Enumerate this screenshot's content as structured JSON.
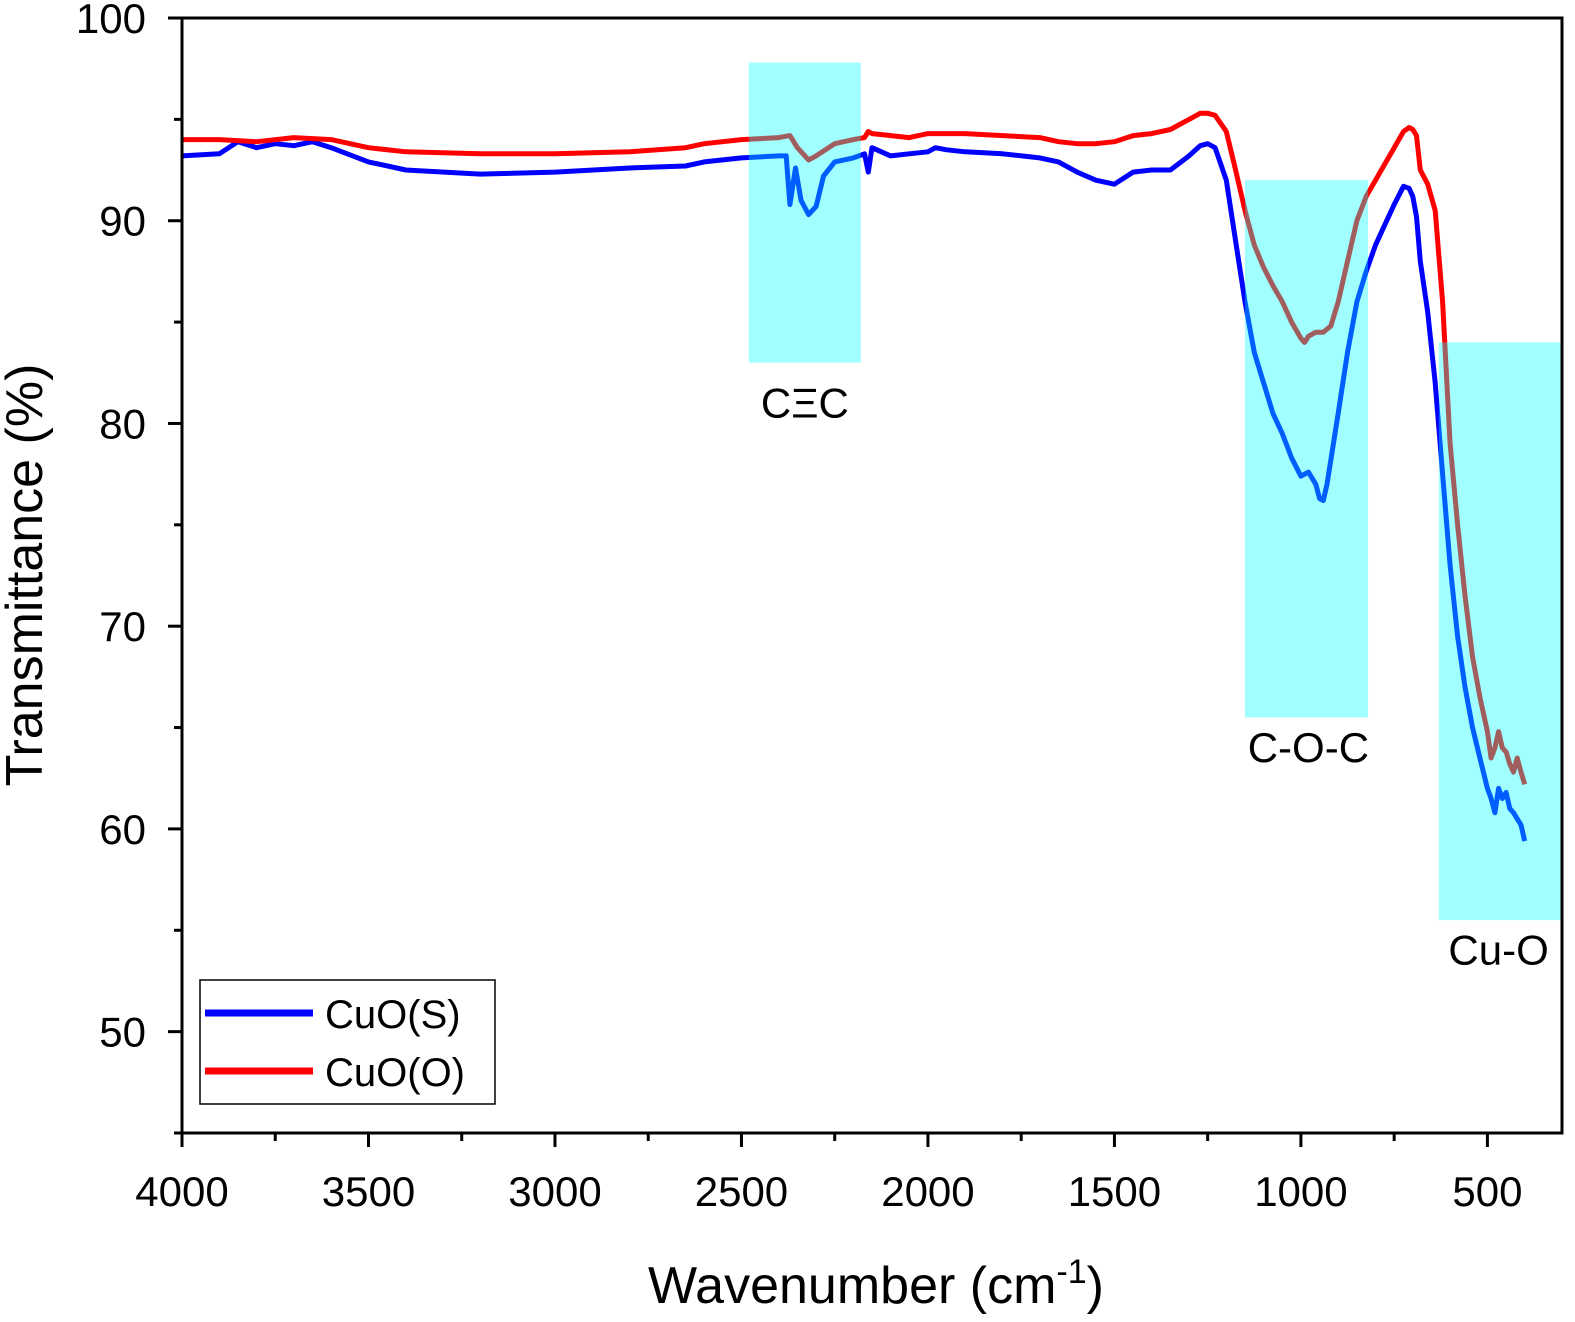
{
  "chart_data": {
    "type": "line",
    "title": "",
    "xlabel": "Wavenumber (cm",
    "xlabel_sup": "-1",
    "xlabel_close": ")",
    "ylabel": "Transmittance (%)",
    "xlim": [
      4000,
      300
    ],
    "ylim": [
      45,
      100
    ],
    "x_reversed": true,
    "x_ticks": [
      4000,
      3500,
      3000,
      2500,
      2000,
      1500,
      1000,
      500
    ],
    "y_ticks": [
      50,
      60,
      70,
      80,
      90,
      100
    ],
    "grid": false,
    "legend": {
      "position": "bottom-left"
    },
    "series": [
      {
        "name": "CuO(S)",
        "color": "#0000ff",
        "points": [
          [
            4000,
            93.2
          ],
          [
            3900,
            93.3
          ],
          [
            3850,
            93.9
          ],
          [
            3800,
            93.6
          ],
          [
            3750,
            93.8
          ],
          [
            3700,
            93.7
          ],
          [
            3650,
            93.9
          ],
          [
            3600,
            93.6
          ],
          [
            3500,
            92.9
          ],
          [
            3400,
            92.5
          ],
          [
            3200,
            92.3
          ],
          [
            3000,
            92.4
          ],
          [
            2800,
            92.6
          ],
          [
            2650,
            92.7
          ],
          [
            2600,
            92.9
          ],
          [
            2500,
            93.1
          ],
          [
            2400,
            93.2
          ],
          [
            2380,
            93.2
          ],
          [
            2370,
            90.8
          ],
          [
            2355,
            92.6
          ],
          [
            2340,
            91.0
          ],
          [
            2320,
            90.3
          ],
          [
            2300,
            90.7
          ],
          [
            2280,
            92.2
          ],
          [
            2250,
            92.9
          ],
          [
            2200,
            93.1
          ],
          [
            2170,
            93.3
          ],
          [
            2160,
            92.4
          ],
          [
            2150,
            93.6
          ],
          [
            2100,
            93.2
          ],
          [
            2050,
            93.3
          ],
          [
            2000,
            93.4
          ],
          [
            1980,
            93.6
          ],
          [
            1950,
            93.5
          ],
          [
            1900,
            93.4
          ],
          [
            1800,
            93.3
          ],
          [
            1700,
            93.1
          ],
          [
            1650,
            92.9
          ],
          [
            1600,
            92.4
          ],
          [
            1550,
            92.0
          ],
          [
            1500,
            91.8
          ],
          [
            1450,
            92.4
          ],
          [
            1400,
            92.5
          ],
          [
            1350,
            92.5
          ],
          [
            1300,
            93.2
          ],
          [
            1270,
            93.7
          ],
          [
            1250,
            93.8
          ],
          [
            1230,
            93.6
          ],
          [
            1200,
            92.0
          ],
          [
            1175,
            89.0
          ],
          [
            1150,
            86.0
          ],
          [
            1125,
            83.5
          ],
          [
            1100,
            82.0
          ],
          [
            1075,
            80.5
          ],
          [
            1050,
            79.5
          ],
          [
            1025,
            78.3
          ],
          [
            1000,
            77.4
          ],
          [
            980,
            77.6
          ],
          [
            960,
            77.0
          ],
          [
            950,
            76.3
          ],
          [
            940,
            76.2
          ],
          [
            930,
            77.0
          ],
          [
            900,
            80.5
          ],
          [
            875,
            83.5
          ],
          [
            850,
            86.0
          ],
          [
            825,
            87.5
          ],
          [
            800,
            88.8
          ],
          [
            775,
            89.8
          ],
          [
            750,
            90.8
          ],
          [
            725,
            91.7
          ],
          [
            710,
            91.6
          ],
          [
            700,
            91.2
          ],
          [
            690,
            90.2
          ],
          [
            680,
            88.0
          ],
          [
            660,
            85.5
          ],
          [
            640,
            82.0
          ],
          [
            620,
            77.5
          ],
          [
            600,
            73.0
          ],
          [
            580,
            69.5
          ],
          [
            560,
            67.0
          ],
          [
            540,
            65.0
          ],
          [
            520,
            63.5
          ],
          [
            500,
            62.0
          ],
          [
            490,
            61.5
          ],
          [
            480,
            60.8
          ],
          [
            470,
            62.0
          ],
          [
            460,
            61.5
          ],
          [
            450,
            61.8
          ],
          [
            440,
            61.0
          ],
          [
            430,
            60.8
          ],
          [
            420,
            60.5
          ],
          [
            410,
            60.2
          ],
          [
            400,
            59.4
          ]
        ]
      },
      {
        "name": "CuO(O)",
        "color": "#ff0000",
        "points": [
          [
            4000,
            94.0
          ],
          [
            3900,
            94.0
          ],
          [
            3800,
            93.9
          ],
          [
            3700,
            94.1
          ],
          [
            3600,
            94.0
          ],
          [
            3500,
            93.6
          ],
          [
            3400,
            93.4
          ],
          [
            3200,
            93.3
          ],
          [
            3000,
            93.3
          ],
          [
            2800,
            93.4
          ],
          [
            2650,
            93.6
          ],
          [
            2600,
            93.8
          ],
          [
            2500,
            94.0
          ],
          [
            2400,
            94.1
          ],
          [
            2370,
            94.2
          ],
          [
            2350,
            93.6
          ],
          [
            2320,
            93.0
          ],
          [
            2300,
            93.2
          ],
          [
            2250,
            93.8
          ],
          [
            2200,
            94.0
          ],
          [
            2170,
            94.1
          ],
          [
            2160,
            94.4
          ],
          [
            2150,
            94.3
          ],
          [
            2100,
            94.2
          ],
          [
            2050,
            94.1
          ],
          [
            2000,
            94.3
          ],
          [
            1950,
            94.3
          ],
          [
            1900,
            94.3
          ],
          [
            1800,
            94.2
          ],
          [
            1700,
            94.1
          ],
          [
            1650,
            93.9
          ],
          [
            1600,
            93.8
          ],
          [
            1550,
            93.8
          ],
          [
            1500,
            93.9
          ],
          [
            1450,
            94.2
          ],
          [
            1400,
            94.3
          ],
          [
            1350,
            94.5
          ],
          [
            1300,
            95.0
          ],
          [
            1270,
            95.3
          ],
          [
            1250,
            95.3
          ],
          [
            1230,
            95.2
          ],
          [
            1200,
            94.4
          ],
          [
            1175,
            92.5
          ],
          [
            1150,
            90.5
          ],
          [
            1125,
            88.8
          ],
          [
            1100,
            87.7
          ],
          [
            1075,
            86.8
          ],
          [
            1050,
            86.0
          ],
          [
            1025,
            85.0
          ],
          [
            1000,
            84.2
          ],
          [
            990,
            84.0
          ],
          [
            980,
            84.3
          ],
          [
            960,
            84.5
          ],
          [
            940,
            84.5
          ],
          [
            920,
            84.8
          ],
          [
            900,
            86.0
          ],
          [
            875,
            88.0
          ],
          [
            850,
            90.0
          ],
          [
            825,
            91.2
          ],
          [
            800,
            92.0
          ],
          [
            775,
            92.8
          ],
          [
            750,
            93.6
          ],
          [
            725,
            94.4
          ],
          [
            710,
            94.6
          ],
          [
            700,
            94.5
          ],
          [
            690,
            94.2
          ],
          [
            680,
            92.5
          ],
          [
            660,
            91.8
          ],
          [
            640,
            90.5
          ],
          [
            620,
            86.0
          ],
          [
            600,
            79.0
          ],
          [
            580,
            75.0
          ],
          [
            560,
            71.5
          ],
          [
            540,
            68.5
          ],
          [
            520,
            66.5
          ],
          [
            500,
            64.8
          ],
          [
            490,
            63.5
          ],
          [
            480,
            64.0
          ],
          [
            470,
            64.8
          ],
          [
            460,
            64.0
          ],
          [
            450,
            63.8
          ],
          [
            440,
            63.2
          ],
          [
            430,
            62.8
          ],
          [
            420,
            63.5
          ],
          [
            410,
            62.8
          ],
          [
            400,
            62.2
          ]
        ]
      }
    ],
    "annotations": [
      {
        "label": "CΞC",
        "x_range": [
          2480,
          2180
        ],
        "y_range": [
          83,
          97.8
        ],
        "label_x": 2330,
        "label_y": 80.3
      },
      {
        "label": "C-O-C",
        "x_range": [
          1150,
          820
        ],
        "y_range": [
          65.5,
          92
        ],
        "label_x": 980,
        "label_y": 63.3
      },
      {
        "label": "Cu-O",
        "x_range": [
          630,
          300
        ],
        "y_range": [
          55.5,
          84
        ],
        "label_x": 470,
        "label_y": 53.3
      }
    ],
    "band_color": "#00ffff",
    "band_opacity": 0.37
  }
}
